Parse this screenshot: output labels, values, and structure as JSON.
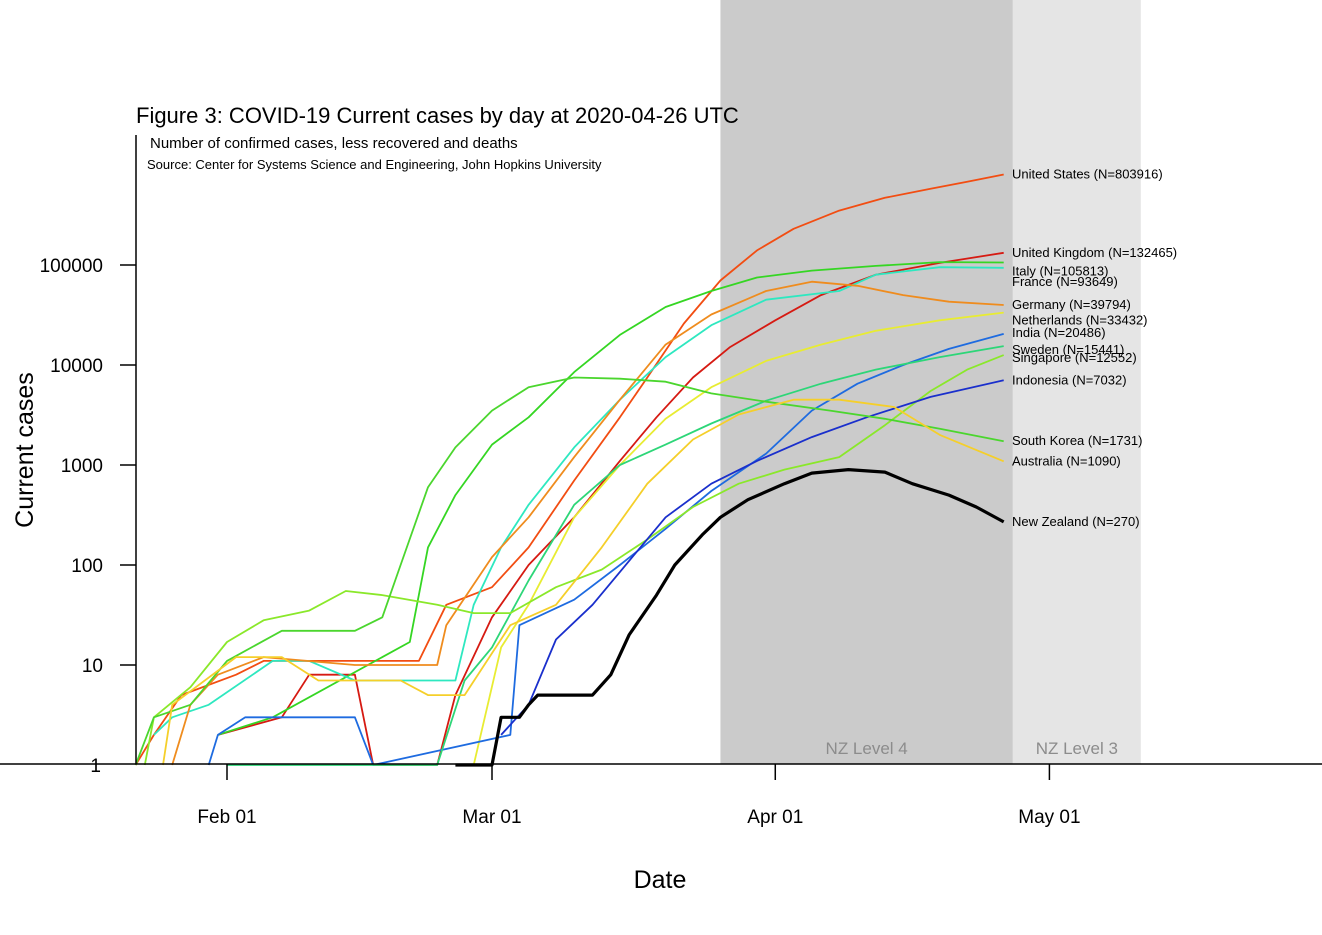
{
  "chart_data": {
    "type": "line",
    "title": "Figure 3: COVID-19 Current cases by day at 2020-04-26 UTC",
    "subtitle": "Number of confirmed cases, less recovered and deaths",
    "source": "Source: Center for Systems Science and Engineering, John Hopkins University",
    "xlabel": "Date",
    "ylabel": "Current cases",
    "y_scale": "log",
    "ylim": [
      1,
      1000000
    ],
    "xlim": [
      "2020-01-22",
      "2020-06-01"
    ],
    "x_ticks": [
      {
        "date": "2020-02-01",
        "label": "Feb 01"
      },
      {
        "date": "2020-03-01",
        "label": "Mar 01"
      },
      {
        "date": "2020-04-01",
        "label": "Apr 01"
      },
      {
        "date": "2020-05-01",
        "label": "May 01"
      }
    ],
    "y_ticks": [
      {
        "value": 1,
        "label": "1"
      },
      {
        "value": 10,
        "label": "10"
      },
      {
        "value": 100,
        "label": "100"
      },
      {
        "value": 1000,
        "label": "1000"
      },
      {
        "value": 10000,
        "label": "10000"
      },
      {
        "value": 100000,
        "label": "100000"
      }
    ],
    "grid": false,
    "shaded_regions": [
      {
        "label": "NZ Level 4",
        "start": "2020-03-26",
        "end": "2020-04-27",
        "color": "#cbcbcb"
      },
      {
        "label": "NZ Level 3",
        "start": "2020-04-27",
        "end": "2020-05-11",
        "color": "#e5e5e5"
      }
    ],
    "series": [
      {
        "name": "United States",
        "label": "United States (N=803916)",
        "color": "#f24d12",
        "width": 1.8,
        "points": [
          [
            "2020-01-22",
            1
          ],
          [
            "2020-01-24",
            2
          ],
          [
            "2020-01-27",
            5
          ],
          [
            "2020-02-02",
            8
          ],
          [
            "2020-02-05",
            11
          ],
          [
            "2020-02-15",
            11
          ],
          [
            "2020-02-22",
            11
          ],
          [
            "2020-02-25",
            40
          ],
          [
            "2020-03-01",
            60
          ],
          [
            "2020-03-05",
            150
          ],
          [
            "2020-03-10",
            700
          ],
          [
            "2020-03-15",
            3000
          ],
          [
            "2020-03-18",
            7500
          ],
          [
            "2020-03-22",
            26000
          ],
          [
            "2020-03-26",
            70000
          ],
          [
            "2020-03-30",
            140000
          ],
          [
            "2020-04-03",
            230000
          ],
          [
            "2020-04-08",
            350000
          ],
          [
            "2020-04-13",
            470000
          ],
          [
            "2020-04-18",
            580000
          ],
          [
            "2020-04-22",
            680000
          ],
          [
            "2020-04-26",
            803916
          ]
        ]
      },
      {
        "name": "United Kingdom",
        "label": "United Kingdom (N=132465)",
        "color": "#d61a12",
        "width": 1.8,
        "points": [
          [
            "2020-01-31",
            2
          ],
          [
            "2020-02-07",
            3
          ],
          [
            "2020-02-10",
            8
          ],
          [
            "2020-02-15",
            8
          ],
          [
            "2020-02-17",
            1
          ],
          [
            "2020-02-24",
            1
          ],
          [
            "2020-02-26",
            5
          ],
          [
            "2020-03-01",
            30
          ],
          [
            "2020-03-05",
            100
          ],
          [
            "2020-03-10",
            300
          ],
          [
            "2020-03-15",
            1100
          ],
          [
            "2020-03-19",
            3000
          ],
          [
            "2020-03-23",
            7500
          ],
          [
            "2020-03-27",
            15000
          ],
          [
            "2020-04-01",
            28000
          ],
          [
            "2020-04-06",
            50000
          ],
          [
            "2020-04-12",
            80000
          ],
          [
            "2020-04-19",
            105000
          ],
          [
            "2020-04-26",
            132465
          ]
        ]
      },
      {
        "name": "Italy",
        "label": "Italy (N=105813)",
        "color": "#35d623",
        "width": 1.8,
        "points": [
          [
            "2020-01-31",
            2
          ],
          [
            "2020-02-06",
            3
          ],
          [
            "2020-02-21",
            17
          ],
          [
            "2020-02-23",
            150
          ],
          [
            "2020-02-26",
            500
          ],
          [
            "2020-03-01",
            1600
          ],
          [
            "2020-03-05",
            3000
          ],
          [
            "2020-03-10",
            8500
          ],
          [
            "2020-03-15",
            20000
          ],
          [
            "2020-03-20",
            38000
          ],
          [
            "2020-03-25",
            55000
          ],
          [
            "2020-03-30",
            75000
          ],
          [
            "2020-04-05",
            88000
          ],
          [
            "2020-04-12",
            98000
          ],
          [
            "2020-04-19",
            107000
          ],
          [
            "2020-04-26",
            105813
          ]
        ]
      },
      {
        "name": "France",
        "label": "France (N=93649)",
        "color": "#2ee8c0",
        "width": 1.8,
        "points": [
          [
            "2020-01-24",
            2
          ],
          [
            "2020-01-26",
            3
          ],
          [
            "2020-01-30",
            4
          ],
          [
            "2020-02-06",
            11
          ],
          [
            "2020-02-10",
            11
          ],
          [
            "2020-02-15",
            7
          ],
          [
            "2020-02-26",
            7
          ],
          [
            "2020-02-28",
            40
          ],
          [
            "2020-03-02",
            150
          ],
          [
            "2020-03-05",
            400
          ],
          [
            "2020-03-10",
            1500
          ],
          [
            "2020-03-15",
            4500
          ],
          [
            "2020-03-20",
            12000
          ],
          [
            "2020-03-25",
            25000
          ],
          [
            "2020-03-31",
            45000
          ],
          [
            "2020-04-08",
            55000
          ],
          [
            "2020-04-12",
            80000
          ],
          [
            "2020-04-19",
            95000
          ],
          [
            "2020-04-26",
            93649
          ]
        ]
      },
      {
        "name": "Germany",
        "label": "Germany (N=39794)",
        "color": "#ef8c1e",
        "width": 1.8,
        "points": [
          [
            "2020-01-26",
            1
          ],
          [
            "2020-01-28",
            4
          ],
          [
            "2020-01-31",
            8
          ],
          [
            "2020-02-05",
            12
          ],
          [
            "2020-02-15",
            10
          ],
          [
            "2020-02-24",
            10
          ],
          [
            "2020-02-25",
            25
          ],
          [
            "2020-03-01",
            120
          ],
          [
            "2020-03-05",
            300
          ],
          [
            "2020-03-10",
            1200
          ],
          [
            "2020-03-15",
            4500
          ],
          [
            "2020-03-20",
            16000
          ],
          [
            "2020-03-25",
            32000
          ],
          [
            "2020-03-31",
            55000
          ],
          [
            "2020-04-05",
            68000
          ],
          [
            "2020-04-10",
            62000
          ],
          [
            "2020-04-15",
            50000
          ],
          [
            "2020-04-20",
            43000
          ],
          [
            "2020-04-26",
            39794
          ]
        ]
      },
      {
        "name": "Netherlands",
        "label": "Netherlands (N=33432)",
        "color": "#e8ec32",
        "width": 1.8,
        "points": [
          [
            "2020-02-28",
            1
          ],
          [
            "2020-03-02",
            15
          ],
          [
            "2020-03-05",
            40
          ],
          [
            "2020-03-10",
            300
          ],
          [
            "2020-03-15",
            1000
          ],
          [
            "2020-03-20",
            2900
          ],
          [
            "2020-03-25",
            6000
          ],
          [
            "2020-03-31",
            11000
          ],
          [
            "2020-04-06",
            16000
          ],
          [
            "2020-04-12",
            22000
          ],
          [
            "2020-04-19",
            28000
          ],
          [
            "2020-04-26",
            33432
          ]
        ]
      },
      {
        "name": "India",
        "label": "India (N=20486)",
        "color": "#1e6be0",
        "width": 1.8,
        "points": [
          [
            "2020-01-30",
            1
          ],
          [
            "2020-01-31",
            2
          ],
          [
            "2020-02-03",
            3
          ],
          [
            "2020-02-15",
            3
          ],
          [
            "2020-02-17",
            1
          ],
          [
            "2020-03-03",
            2
          ],
          [
            "2020-03-04",
            25
          ],
          [
            "2020-03-10",
            45
          ],
          [
            "2020-03-15",
            100
          ],
          [
            "2020-03-20",
            230
          ],
          [
            "2020-03-25",
            550
          ],
          [
            "2020-03-31",
            1300
          ],
          [
            "2020-04-05",
            3500
          ],
          [
            "2020-04-10",
            6500
          ],
          [
            "2020-04-15",
            10000
          ],
          [
            "2020-04-20",
            14500
          ],
          [
            "2020-04-26",
            20486
          ]
        ]
      },
      {
        "name": "Sweden",
        "label": "Sweden (N=15441)",
        "color": "#2dd678",
        "width": 1.8,
        "points": [
          [
            "2020-02-01",
            1
          ],
          [
            "2020-02-24",
            1
          ],
          [
            "2020-02-27",
            7
          ],
          [
            "2020-03-01",
            15
          ],
          [
            "2020-03-05",
            70
          ],
          [
            "2020-03-10",
            400
          ],
          [
            "2020-03-15",
            1000
          ],
          [
            "2020-03-20",
            1600
          ],
          [
            "2020-03-25",
            2600
          ],
          [
            "2020-03-31",
            4400
          ],
          [
            "2020-04-06",
            6500
          ],
          [
            "2020-04-12",
            9000
          ],
          [
            "2020-04-19",
            12000
          ],
          [
            "2020-04-26",
            15441
          ]
        ]
      },
      {
        "name": "Singapore",
        "label": "Singapore (N=12552)",
        "color": "#8ae82a",
        "width": 1.8,
        "points": [
          [
            "2020-01-23",
            1
          ],
          [
            "2020-01-24",
            3
          ],
          [
            "2020-01-28",
            6
          ],
          [
            "2020-02-01",
            17
          ],
          [
            "2020-02-05",
            28
          ],
          [
            "2020-02-10",
            35
          ],
          [
            "2020-02-14",
            55
          ],
          [
            "2020-02-18",
            50
          ],
          [
            "2020-02-24",
            40
          ],
          [
            "2020-02-28",
            33
          ],
          [
            "2020-03-03",
            33
          ],
          [
            "2020-03-08",
            60
          ],
          [
            "2020-03-13",
            90
          ],
          [
            "2020-03-18",
            180
          ],
          [
            "2020-03-23",
            380
          ],
          [
            "2020-03-28",
            650
          ],
          [
            "2020-04-02",
            900
          ],
          [
            "2020-04-08",
            1200
          ],
          [
            "2020-04-13",
            2500
          ],
          [
            "2020-04-18",
            5500
          ],
          [
            "2020-04-22",
            9000
          ],
          [
            "2020-04-26",
            12552
          ]
        ]
      },
      {
        "name": "Indonesia",
        "label": "Indonesia (N=7032)",
        "color": "#1a2fcc",
        "width": 1.8,
        "points": [
          [
            "2020-03-02",
            2
          ],
          [
            "2020-03-05",
            4
          ],
          [
            "2020-03-08",
            18
          ],
          [
            "2020-03-12",
            40
          ],
          [
            "2020-03-16",
            110
          ],
          [
            "2020-03-20",
            300
          ],
          [
            "2020-03-25",
            650
          ],
          [
            "2020-03-30",
            1100
          ],
          [
            "2020-04-05",
            1900
          ],
          [
            "2020-04-11",
            3000
          ],
          [
            "2020-04-18",
            4800
          ],
          [
            "2020-04-26",
            7032
          ]
        ]
      },
      {
        "name": "South Korea",
        "label": "South Korea (N=1731)",
        "color": "#4bd62e",
        "width": 1.8,
        "points": [
          [
            "2020-01-22",
            1
          ],
          [
            "2020-01-24",
            3
          ],
          [
            "2020-01-28",
            4
          ],
          [
            "2020-02-01",
            11
          ],
          [
            "2020-02-07",
            22
          ],
          [
            "2020-02-15",
            22
          ],
          [
            "2020-02-18",
            30
          ],
          [
            "2020-02-20",
            100
          ],
          [
            "2020-02-23",
            600
          ],
          [
            "2020-02-26",
            1500
          ],
          [
            "2020-03-01",
            3500
          ],
          [
            "2020-03-05",
            6000
          ],
          [
            "2020-03-10",
            7500
          ],
          [
            "2020-03-15",
            7300
          ],
          [
            "2020-03-20",
            6800
          ],
          [
            "2020-03-25",
            5200
          ],
          [
            "2020-03-31",
            4300
          ],
          [
            "2020-04-07",
            3500
          ],
          [
            "2020-04-13",
            2900
          ],
          [
            "2020-04-19",
            2300
          ],
          [
            "2020-04-26",
            1731
          ]
        ]
      },
      {
        "name": "Australia",
        "label": "Australia (N=1090)",
        "color": "#f5cf2a",
        "width": 1.8,
        "points": [
          [
            "2020-01-25",
            1
          ],
          [
            "2020-01-26",
            4
          ],
          [
            "2020-02-02",
            12
          ],
          [
            "2020-02-07",
            12
          ],
          [
            "2020-02-11",
            7
          ],
          [
            "2020-02-20",
            7
          ],
          [
            "2020-02-23",
            5
          ],
          [
            "2020-02-27",
            5
          ],
          [
            "2020-03-03",
            25
          ],
          [
            "2020-03-08",
            40
          ],
          [
            "2020-03-13",
            150
          ],
          [
            "2020-03-18",
            650
          ],
          [
            "2020-03-23",
            1800
          ],
          [
            "2020-03-28",
            3200
          ],
          [
            "2020-04-03",
            4500
          ],
          [
            "2020-04-08",
            4500
          ],
          [
            "2020-04-14",
            3800
          ],
          [
            "2020-04-19",
            2000
          ],
          [
            "2020-04-26",
            1090
          ]
        ]
      },
      {
        "name": "New Zealand",
        "label": "New Zealand (N=270)",
        "color": "#000000",
        "width": 3.2,
        "points": [
          [
            "2020-02-26",
            1
          ],
          [
            "2020-03-01",
            1
          ],
          [
            "2020-03-02",
            3
          ],
          [
            "2020-03-04",
            3
          ],
          [
            "2020-03-05",
            4
          ],
          [
            "2020-03-06",
            5
          ],
          [
            "2020-03-12",
            5
          ],
          [
            "2020-03-14",
            8
          ],
          [
            "2020-03-16",
            20
          ],
          [
            "2020-03-19",
            50
          ],
          [
            "2020-03-21",
            100
          ],
          [
            "2020-03-24",
            200
          ],
          [
            "2020-03-26",
            300
          ],
          [
            "2020-03-29",
            450
          ],
          [
            "2020-04-02",
            650
          ],
          [
            "2020-04-05",
            830
          ],
          [
            "2020-04-09",
            900
          ],
          [
            "2020-04-13",
            850
          ],
          [
            "2020-04-16",
            650
          ],
          [
            "2020-04-20",
            500
          ],
          [
            "2020-04-23",
            380
          ],
          [
            "2020-04-26",
            270
          ]
        ]
      }
    ]
  }
}
